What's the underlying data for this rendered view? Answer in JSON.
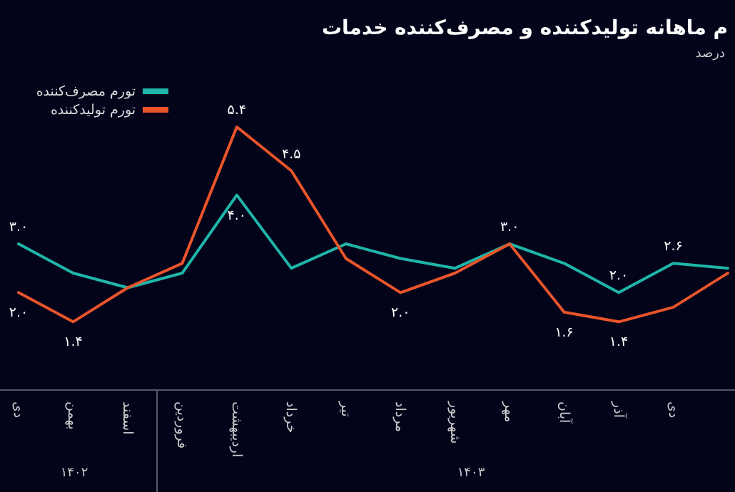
{
  "chart_data": {
    "type": "line",
    "title": "م ماهانه تولیدکننده و مصرف‌کننده خدمات",
    "subtitle": "درصد",
    "categories": [
      "دی",
      "بهمن",
      "اسفند",
      "فروردین",
      "اردیبهشت",
      "خرداد",
      "تیر",
      "مرداد",
      "شهریور",
      "مهر",
      "آبان",
      "آذر",
      "دی",
      null
    ],
    "series": [
      {
        "name": "تورم مصرف‌کننده",
        "color": "#1fb5a8",
        "values": [
          3.0,
          2.4,
          2.1,
          2.4,
          4.0,
          2.5,
          3.0,
          2.7,
          2.5,
          3.0,
          2.6,
          2.0,
          2.6,
          2.5
        ],
        "value_labels": [
          "۳.۰",
          null,
          null,
          null,
          "۴.۰",
          null,
          null,
          null,
          null,
          "۳.۰",
          null,
          "۲.۰",
          "۲.۶",
          null
        ]
      },
      {
        "name": "تورم تولیدکننده",
        "color": "#e8552a",
        "values": [
          2.0,
          1.4,
          2.1,
          2.6,
          5.4,
          4.5,
          2.7,
          2.0,
          2.4,
          3.0,
          1.6,
          1.4,
          1.7,
          2.4
        ],
        "value_labels": [
          "۲.۰",
          "۱.۴",
          null,
          null,
          "۵.۴",
          "۴.۵",
          null,
          "۲.۰",
          null,
          null,
          "۱.۶",
          "۱.۴",
          null,
          null
        ]
      }
    ],
    "annotations": [
      "۱۴۰۲",
      "۱۴۰۳"
    ],
    "legend": "top left",
    "marker": "none",
    "line_style": "solid"
  }
}
